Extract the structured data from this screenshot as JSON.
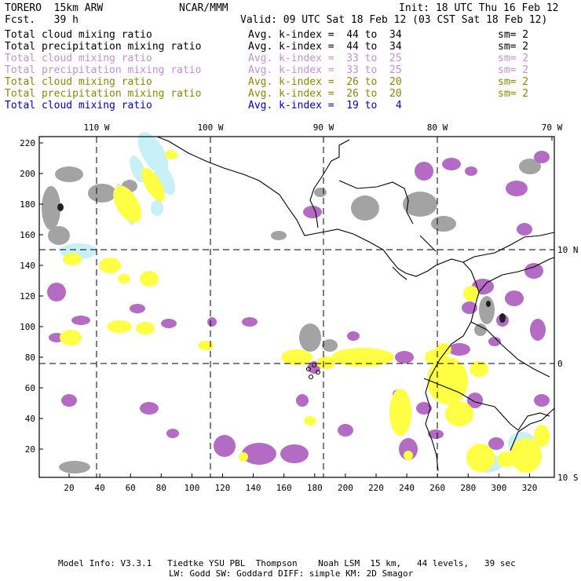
{
  "header": {
    "model": "TORERO  15km ARW",
    "org": "NCAR/MMM",
    "init": "Init: 18 UTC Thu 16 Feb 12",
    "fcst": "Fcst.   39 h",
    "valid": "Valid: 09 UTC Sat 18 Feb 12 (03 CST Sat 18 Feb 12)"
  },
  "legend": [
    {
      "field": "Total cloud mixing ratio",
      "k": "Avg. k-index =  44 to  34",
      "sm": "sm= 2",
      "color": "#000000"
    },
    {
      "field": "Total precipitation mixing ratio",
      "k": "Avg. k-index =  44 to  34",
      "sm": "sm= 2",
      "color": "#000000"
    },
    {
      "field": "Total cloud mixing ratio",
      "k": "Avg. k-index =  33 to  25",
      "sm": "sm= 2",
      "color": "#c58fd6"
    },
    {
      "field": "Total precipitation mixing ratio",
      "k": "Avg. k-index =  33 to  25",
      "sm": "sm= 2",
      "color": "#c58fd6"
    },
    {
      "field": "Total cloud mixing ratio",
      "k": "Avg. k-index =  26 to  20",
      "sm": "sm= 2",
      "color": "#8a8a00"
    },
    {
      "field": "Total precipitation mixing ratio",
      "k": "Avg. k-index =  26 to  20",
      "sm": "sm= 2",
      "color": "#8a8a00"
    },
    {
      "field": "Total cloud mixing ratio",
      "k": "Avg. k-index =  19 to   4",
      "sm": "",
      "color": "#0000cc"
    }
  ],
  "map": {
    "x_ticks": [
      "20",
      "40",
      "60",
      "80",
      "100",
      "120",
      "140",
      "160",
      "180",
      "200",
      "220",
      "240",
      "260",
      "280",
      "300",
      "320"
    ],
    "y_ticks": [
      "20",
      "40",
      "60",
      "80",
      "100",
      "120",
      "140",
      "160",
      "180",
      "200",
      "220"
    ],
    "lon_labels": [
      "110 W",
      "100 W",
      "90 W",
      "80 W",
      "70 W"
    ],
    "lat_labels": [
      "10 N",
      "0",
      "10 S"
    ],
    "colors": {
      "gray": "#a3a3a3",
      "purple": "#b36bc4",
      "yellow": "#ffff44",
      "cyan": "#c8f0f8",
      "dark": "#202020"
    }
  },
  "footer": {
    "line1": "Model Info: V3.3.1   Tiedtke YSU PBL  Thompson    Noah LSM  15 km,   44 levels,   39 sec",
    "line2": "LW: Godd SW: Goddard DIFF: simple KM: 2D Smagor"
  }
}
